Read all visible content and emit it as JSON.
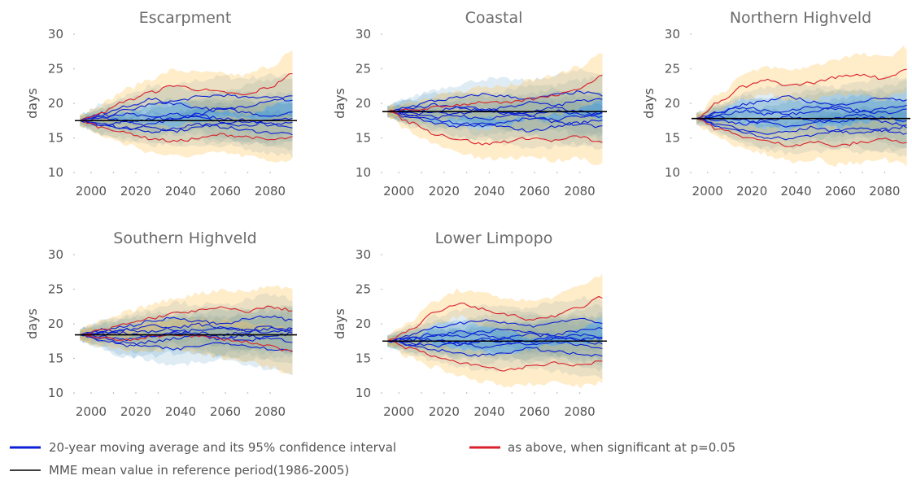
{
  "chart_data": [
    {
      "type": "line",
      "title": "Escarpment",
      "ylabel": "days",
      "xlim": [
        1992,
        2092
      ],
      "ylim": [
        10,
        30
      ],
      "x_ticks": [
        "2000",
        "2020",
        "2040",
        "2060",
        "2080"
      ],
      "y_ticks": [
        "10",
        "15",
        "20",
        "25",
        "30"
      ],
      "reference_value": 17.5,
      "x_range": [
        1995,
        2090
      ],
      "series": [
        {
          "significant": false,
          "values": [
            17.5,
            18.2,
            19.0,
            19.8,
            20.3,
            20.9,
            21.2,
            20.8,
            21.0,
            20.4
          ]
        },
        {
          "significant": false,
          "values": [
            17.5,
            16.8,
            16.2,
            15.9,
            16.4,
            17.0,
            16.6,
            16.1,
            15.8,
            15.6
          ]
        },
        {
          "significant": false,
          "values": [
            17.5,
            18.6,
            19.5,
            20.6,
            20.0,
            19.4,
            19.0,
            19.6,
            20.4,
            21.0
          ]
        },
        {
          "significant": false,
          "values": [
            17.5,
            17.9,
            18.4,
            18.0,
            17.6,
            18.5,
            19.2,
            18.7,
            18.2,
            18.6
          ]
        },
        {
          "significant": false,
          "values": [
            17.5,
            16.9,
            17.4,
            16.6,
            16.0,
            16.5,
            17.2,
            17.6,
            17.0,
            16.6
          ]
        },
        {
          "significant": false,
          "values": [
            17.5,
            18.0,
            17.2,
            17.8,
            18.6,
            17.9,
            17.3,
            16.8,
            17.4,
            17.9
          ]
        },
        {
          "significant": false,
          "values": [
            17.5,
            17.0,
            16.4,
            17.0,
            17.8,
            18.3,
            17.8,
            17.3,
            16.9,
            17.3
          ]
        },
        {
          "significant": true,
          "values": [
            17.5,
            18.8,
            20.4,
            21.6,
            22.6,
            22.0,
            21.6,
            21.2,
            22.3,
            24.2
          ]
        },
        {
          "significant": true,
          "values": [
            17.5,
            16.5,
            15.7,
            14.9,
            14.5,
            14.9,
            15.5,
            15.2,
            14.7,
            15.0
          ]
        }
      ]
    },
    {
      "type": "line",
      "title": "Coastal",
      "ylabel": "days",
      "xlim": [
        1992,
        2092
      ],
      "ylim": [
        10,
        30
      ],
      "x_ticks": [
        "2000",
        "2020",
        "2040",
        "2060",
        "2080"
      ],
      "y_ticks": [
        "10",
        "15",
        "20",
        "25",
        "30"
      ],
      "reference_value": 18.8,
      "x_range": [
        1995,
        2090
      ],
      "series": [
        {
          "significant": false,
          "values": [
            18.8,
            19.6,
            20.4,
            20.8,
            21.3,
            21.0,
            20.6,
            21.2,
            21.6,
            21.2
          ]
        },
        {
          "significant": false,
          "values": [
            18.8,
            18.2,
            17.6,
            17.1,
            16.8,
            17.3,
            17.8,
            17.4,
            16.9,
            16.6
          ]
        },
        {
          "significant": false,
          "values": [
            18.8,
            19.2,
            19.8,
            19.4,
            18.9,
            19.5,
            20.1,
            19.7,
            20.3,
            20.8
          ]
        },
        {
          "significant": false,
          "values": [
            18.8,
            18.5,
            18.0,
            18.6,
            19.2,
            18.7,
            18.3,
            18.9,
            18.4,
            17.9
          ]
        },
        {
          "significant": false,
          "values": [
            18.8,
            17.9,
            17.2,
            16.6,
            17.1,
            16.5,
            16.0,
            16.6,
            17.2,
            17.6
          ]
        },
        {
          "significant": false,
          "values": [
            18.8,
            19.1,
            18.6,
            18.2,
            17.7,
            18.2,
            18.8,
            19.3,
            18.8,
            18.4
          ]
        },
        {
          "significant": false,
          "values": [
            18.8,
            18.3,
            18.9,
            19.6,
            19.1,
            18.6,
            18.1,
            17.6,
            18.1,
            18.7
          ]
        },
        {
          "significant": true,
          "values": [
            18.8,
            17.2,
            15.6,
            14.8,
            14.1,
            14.5,
            15.0,
            14.6,
            15.2,
            14.3
          ]
        },
        {
          "significant": true,
          "values": [
            18.8,
            19.0,
            19.4,
            19.8,
            20.2,
            20.0,
            20.6,
            21.2,
            22.2,
            23.9
          ]
        }
      ]
    },
    {
      "type": "line",
      "title": "Northern Highveld",
      "ylabel": "days",
      "xlim": [
        1992,
        2092
      ],
      "ylim": [
        10,
        30
      ],
      "x_ticks": [
        "2000",
        "2020",
        "2040",
        "2060",
        "2080"
      ],
      "y_ticks": [
        "10",
        "15",
        "20",
        "25",
        "30"
      ],
      "reference_value": 17.8,
      "x_range": [
        1995,
        2090
      ],
      "series": [
        {
          "significant": false,
          "values": [
            17.8,
            18.6,
            19.8,
            20.4,
            20.9,
            20.2,
            19.7,
            20.3,
            20.8,
            20.3
          ]
        },
        {
          "significant": false,
          "values": [
            17.8,
            17.0,
            16.1,
            15.6,
            15.9,
            16.5,
            16.0,
            15.7,
            16.2,
            16.6
          ]
        },
        {
          "significant": false,
          "values": [
            17.8,
            18.3,
            18.9,
            18.4,
            19.0,
            19.6,
            19.1,
            18.7,
            19.3,
            19.8
          ]
        },
        {
          "significant": false,
          "values": [
            17.8,
            17.4,
            17.0,
            17.6,
            18.1,
            17.6,
            17.2,
            17.8,
            17.3,
            16.9
          ]
        },
        {
          "significant": false,
          "values": [
            17.8,
            18.1,
            17.6,
            17.1,
            16.7,
            17.3,
            17.9,
            18.4,
            17.9,
            17.4
          ]
        },
        {
          "significant": false,
          "values": [
            17.8,
            16.6,
            15.8,
            15.1,
            14.9,
            15.4,
            16.0,
            16.5,
            16.0,
            15.6
          ]
        },
        {
          "significant": false,
          "values": [
            17.8,
            18.8,
            19.4,
            19.0,
            18.5,
            18.9,
            19.5,
            19.0,
            18.6,
            19.1
          ]
        },
        {
          "significant": true,
          "values": [
            17.8,
            20.2,
            22.4,
            23.3,
            22.6,
            23.0,
            23.8,
            24.2,
            23.6,
            24.9
          ]
        },
        {
          "significant": true,
          "values": [
            17.8,
            16.2,
            15.2,
            14.5,
            13.9,
            14.4,
            13.8,
            14.3,
            14.9,
            14.2
          ]
        }
      ]
    },
    {
      "type": "line",
      "title": "Southern Highveld",
      "ylabel": "days",
      "xlim": [
        1992,
        2092
      ],
      "ylim": [
        10,
        30
      ],
      "x_ticks": [
        "2000",
        "2020",
        "2040",
        "2060",
        "2080"
      ],
      "y_ticks": [
        "10",
        "15",
        "20",
        "25",
        "30"
      ],
      "reference_value": 18.4,
      "x_range": [
        1995,
        2090
      ],
      "series": [
        {
          "significant": false,
          "values": [
            18.4,
            19.0,
            19.7,
            20.3,
            20.9,
            20.4,
            20.0,
            20.6,
            21.1,
            20.5
          ]
        },
        {
          "significant": false,
          "values": [
            18.4,
            17.8,
            17.2,
            16.7,
            16.3,
            16.8,
            17.3,
            16.9,
            16.4,
            16.1
          ]
        },
        {
          "significant": false,
          "values": [
            18.4,
            18.8,
            19.2,
            18.8,
            19.4,
            19.9,
            19.4,
            19.0,
            19.6,
            19.1
          ]
        },
        {
          "significant": false,
          "values": [
            18.4,
            18.1,
            17.7,
            18.2,
            18.7,
            18.2,
            17.8,
            18.3,
            17.9,
            17.5
          ]
        },
        {
          "significant": false,
          "values": [
            18.4,
            17.5,
            16.9,
            17.4,
            17.9,
            18.4,
            18.0,
            17.6,
            18.1,
            18.6
          ]
        },
        {
          "significant": false,
          "values": [
            18.4,
            19.2,
            18.6,
            18.1,
            18.6,
            19.1,
            19.6,
            19.2,
            18.8,
            19.3
          ]
        },
        {
          "significant": false,
          "values": [
            18.4,
            18.6,
            19.1,
            19.7,
            19.2,
            18.7,
            18.3,
            18.8,
            19.3,
            18.8
          ]
        },
        {
          "significant": true,
          "values": [
            18.4,
            19.1,
            20.0,
            20.8,
            21.5,
            21.9,
            22.3,
            21.8,
            22.4,
            22.0
          ]
        },
        {
          "significant": true,
          "values": [
            18.4,
            17.9,
            17.6,
            18.1,
            18.5,
            18.2,
            17.8,
            17.4,
            16.8,
            15.9
          ]
        }
      ]
    },
    {
      "type": "line",
      "title": "Lower Limpopo",
      "ylabel": "days",
      "xlim": [
        1992,
        2092
      ],
      "ylim": [
        10,
        30
      ],
      "x_ticks": [
        "2000",
        "2020",
        "2040",
        "2060",
        "2080"
      ],
      "y_ticks": [
        "10",
        "15",
        "20",
        "25",
        "30"
      ],
      "reference_value": 17.5,
      "x_range": [
        1995,
        2090
      ],
      "series": [
        {
          "significant": false,
          "values": [
            17.5,
            18.4,
            19.4,
            20.1,
            20.6,
            20.1,
            19.7,
            20.2,
            20.7,
            20.2
          ]
        },
        {
          "significant": false,
          "values": [
            17.5,
            16.8,
            16.2,
            15.7,
            15.4,
            15.9,
            16.4,
            16.0,
            15.6,
            15.3
          ]
        },
        {
          "significant": false,
          "values": [
            17.5,
            17.9,
            18.6,
            18.2,
            18.8,
            19.3,
            18.8,
            18.4,
            19.0,
            19.5
          ]
        },
        {
          "significant": false,
          "values": [
            17.5,
            17.2,
            16.8,
            17.3,
            17.8,
            17.3,
            16.9,
            17.4,
            17.0,
            16.6
          ]
        },
        {
          "significant": false,
          "values": [
            17.5,
            17.0,
            17.6,
            17.1,
            16.6,
            17.1,
            17.6,
            18.1,
            17.6,
            17.1
          ]
        },
        {
          "significant": false,
          "values": [
            17.5,
            18.0,
            17.5,
            17.0,
            17.5,
            18.0,
            18.5,
            18.1,
            17.7,
            18.2
          ]
        },
        {
          "significant": false,
          "values": [
            17.5,
            17.7,
            18.2,
            18.8,
            18.3,
            17.8,
            17.4,
            17.9,
            18.4,
            17.9
          ]
        },
        {
          "significant": true,
          "values": [
            17.5,
            19.2,
            21.6,
            22.9,
            22.1,
            21.3,
            20.6,
            21.1,
            22.3,
            23.9
          ]
        },
        {
          "significant": true,
          "values": [
            17.5,
            16.4,
            15.3,
            14.4,
            13.8,
            13.3,
            13.8,
            14.3,
            14.0,
            14.6
          ]
        }
      ]
    }
  ],
  "legend": {
    "items": [
      {
        "label": "20-year moving average and its 95% confidence interval",
        "color": "#0a1fd6"
      },
      {
        "label": "as above, when significant at p=0.05",
        "color": "#d9202b"
      },
      {
        "label": "MME mean value in reference period(1986-2005)",
        "color": "#000000"
      }
    ]
  },
  "colors": {
    "band": "#1f77b4",
    "band_significant": "#ffc864",
    "line": "#0a1fd6",
    "line_significant": "#d9202b",
    "reference": "#000000",
    "text": "#555555"
  }
}
